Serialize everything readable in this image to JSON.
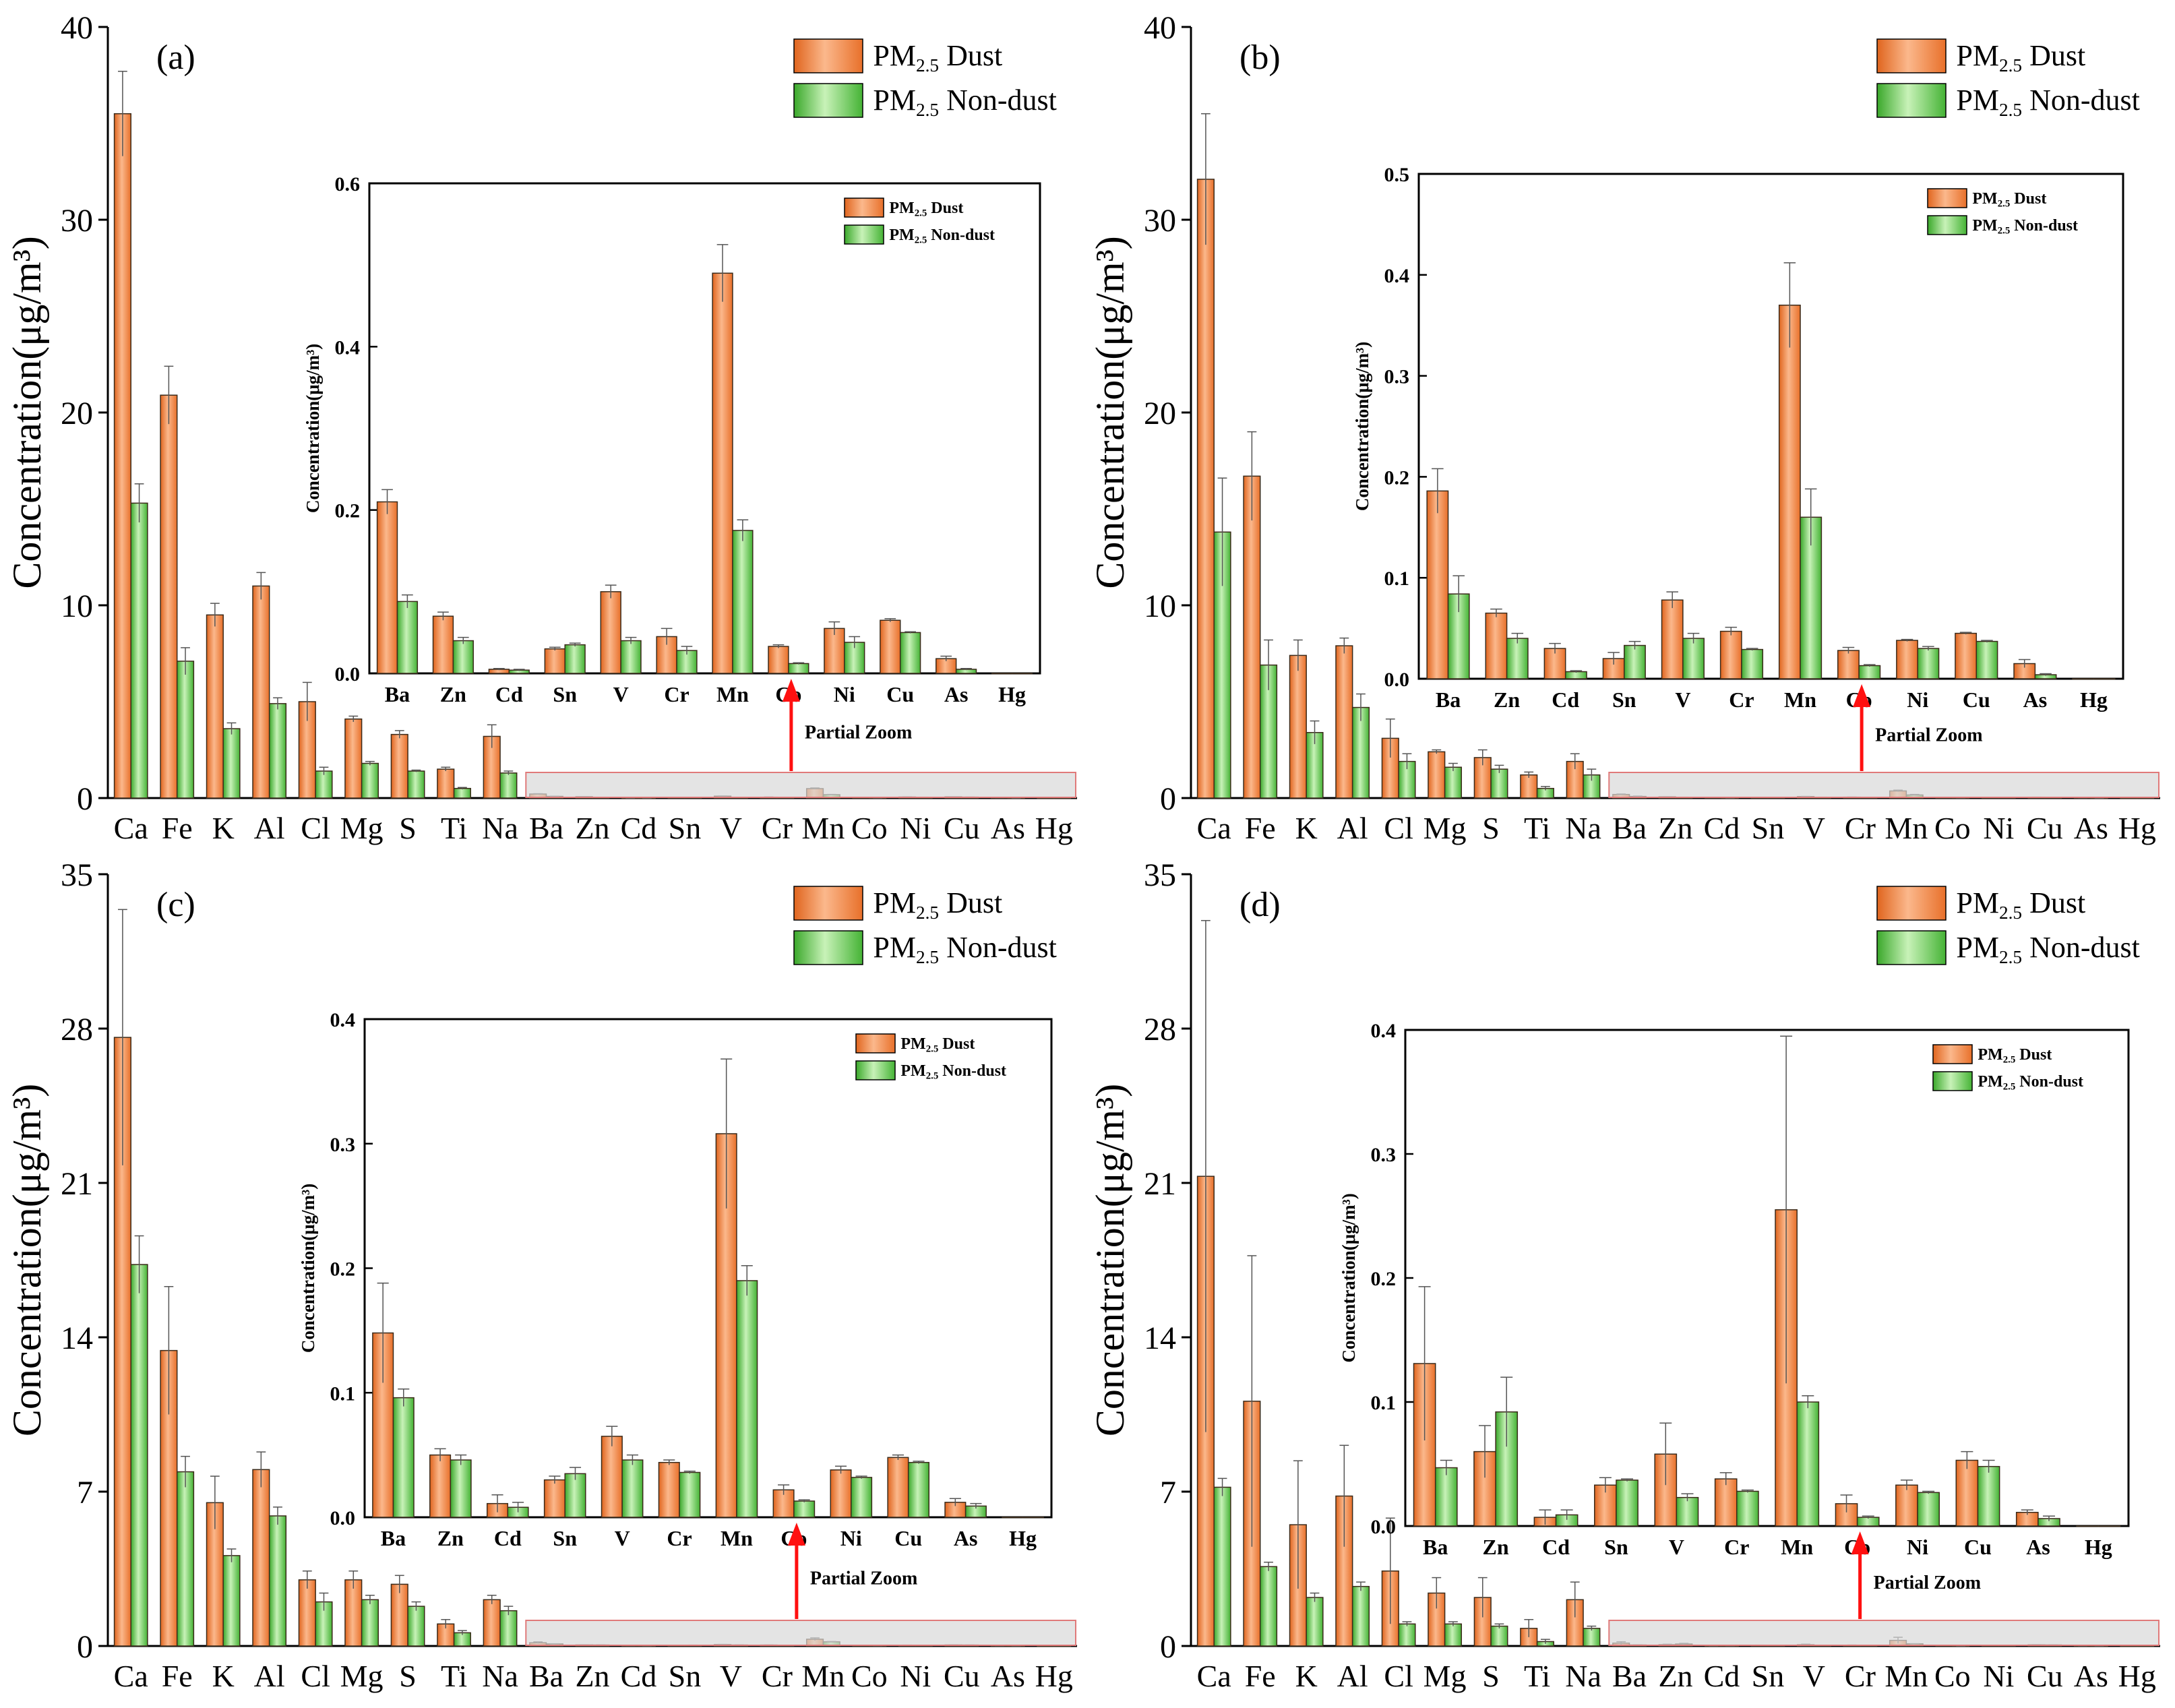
{
  "figure": {
    "partial_zoom_label": "Partial Zoom",
    "legend_base": "PM",
    "legend_sub": "2.5",
    "legend_dust": " Dust",
    "legend_nondust": " Non-dust",
    "colors": {
      "dust": "#f0843c",
      "dust_light": "#fbb88c",
      "nondust": "#5cc348",
      "nondust_light": "#c8f2b8",
      "zoom_box": "#e07a7a",
      "arrow": "#ff1010"
    }
  },
  "chart_data": [
    {
      "type": "bar",
      "panel_label": "(a)",
      "ylabel": "Concentration(μg/m³)",
      "ylim": [
        0,
        40
      ],
      "yticks": [
        "0",
        "10",
        "20",
        "30",
        "40"
      ],
      "categories": [
        "Ca",
        "Fe",
        "K",
        "Al",
        "Cl",
        "Mg",
        "S",
        "Ti",
        "Na",
        "Ba",
        "Zn",
        "Cd",
        "Sn",
        "V",
        "Cr",
        "Mn",
        "Co",
        "Ni",
        "Cu",
        "As",
        "Hg"
      ],
      "series": [
        {
          "name": "PM2.5 Dust",
          "values": [
            35.5,
            20.9,
            9.5,
            11.0,
            5.0,
            4.1,
            3.3,
            1.5,
            3.2,
            0.21,
            0.07,
            0.005,
            0.03,
            0.1,
            0.045,
            0.49,
            0.033,
            0.055,
            0.065,
            0.018,
            0.0
          ],
          "errors": [
            2.2,
            1.5,
            0.6,
            0.7,
            1.0,
            0.15,
            0.2,
            0.1,
            0.6,
            0.015,
            0.005,
            0.001,
            0.002,
            0.008,
            0.01,
            0.035,
            0.002,
            0.008,
            0.002,
            0.003,
            0
          ]
        },
        {
          "name": "PM2.5 Non-dust",
          "values": [
            15.3,
            7.1,
            3.6,
            4.9,
            1.4,
            1.8,
            1.4,
            0.5,
            1.3,
            0.088,
            0.04,
            0.004,
            0.035,
            0.04,
            0.028,
            0.175,
            0.012,
            0.038,
            0.05,
            0.005,
            0.0
          ],
          "errors": [
            1.0,
            0.7,
            0.3,
            0.3,
            0.2,
            0.1,
            0.05,
            0.05,
            0.1,
            0.008,
            0.004,
            0.001,
            0.002,
            0.004,
            0.005,
            0.013,
            0.001,
            0.007,
            0.001,
            0.001,
            0
          ]
        }
      ],
      "inset": {
        "ylabel": "Concentration(μg/m³)",
        "ylim": [
          0,
          0.6
        ],
        "yticks": [
          "0.0",
          "0.2",
          "0.4",
          "0.6"
        ],
        "categories": [
          "Ba",
          "Zn",
          "Cd",
          "Sn",
          "V",
          "Cr",
          "Mn",
          "Co",
          "Ni",
          "Cu",
          "As",
          "Hg"
        ]
      }
    },
    {
      "type": "bar",
      "panel_label": "(b)",
      "ylabel": "Concentration(μg/m³)",
      "ylim": [
        0,
        40
      ],
      "yticks": [
        "0",
        "10",
        "20",
        "30",
        "40"
      ],
      "categories": [
        "Ca",
        "Fe",
        "K",
        "Al",
        "Cl",
        "Mg",
        "S",
        "Ti",
        "Na",
        "Ba",
        "Zn",
        "Cd",
        "Sn",
        "V",
        "Cr",
        "Mn",
        "Co",
        "Ni",
        "Cu",
        "As",
        "Hg"
      ],
      "series": [
        {
          "name": "PM2.5 Dust",
          "values": [
            32.1,
            16.7,
            7.4,
            7.9,
            3.1,
            2.4,
            2.1,
            1.2,
            1.9,
            0.186,
            0.065,
            0.03,
            0.02,
            0.078,
            0.047,
            0.37,
            0.028,
            0.038,
            0.045,
            0.015,
            0.0
          ],
          "errors": [
            3.4,
            2.3,
            0.8,
            0.4,
            1.0,
            0.1,
            0.4,
            0.15,
            0.4,
            0.022,
            0.004,
            0.005,
            0.006,
            0.008,
            0.004,
            0.042,
            0.003,
            0.001,
            0.001,
            0.004,
            0
          ]
        },
        {
          "name": "PM2.5 Non-dust",
          "values": [
            13.8,
            6.9,
            3.4,
            4.7,
            1.9,
            1.6,
            1.5,
            0.5,
            1.2,
            0.084,
            0.04,
            0.007,
            0.033,
            0.04,
            0.029,
            0.16,
            0.013,
            0.03,
            0.037,
            0.004,
            0.0
          ],
          "errors": [
            2.8,
            1.3,
            0.6,
            0.7,
            0.4,
            0.2,
            0.2,
            0.1,
            0.3,
            0.018,
            0.005,
            0.001,
            0.004,
            0.005,
            0.001,
            0.028,
            0.001,
            0.002,
            0.001,
            0.001,
            0
          ]
        }
      ],
      "inset": {
        "ylabel": "Concentration(μg/m³)",
        "ylim": [
          0,
          0.5
        ],
        "yticks": [
          "0.0",
          "0.1",
          "0.2",
          "0.3",
          "0.4",
          "0.5"
        ],
        "categories": [
          "Ba",
          "Zn",
          "Cd",
          "Sn",
          "V",
          "Cr",
          "Mn",
          "Co",
          "Ni",
          "Cu",
          "As",
          "Hg"
        ]
      }
    },
    {
      "type": "bar",
      "panel_label": "(c)",
      "ylabel": "Concentration(μg/m³)",
      "ylim": [
        0,
        35
      ],
      "yticks": [
        "0",
        "7",
        "14",
        "21",
        "28",
        "35"
      ],
      "categories": [
        "Ca",
        "Fe",
        "K",
        "Al",
        "Cl",
        "Mg",
        "S",
        "Ti",
        "Na",
        "Ba",
        "Zn",
        "Cd",
        "Sn",
        "V",
        "Cr",
        "Mn",
        "Co",
        "Ni",
        "Cu",
        "As",
        "Hg"
      ],
      "series": [
        {
          "name": "PM2.5 Dust",
          "values": [
            27.6,
            13.4,
            6.5,
            8.0,
            3.0,
            3.0,
            2.8,
            1.0,
            2.1,
            0.148,
            0.05,
            0.011,
            0.03,
            0.065,
            0.044,
            0.308,
            0.022,
            0.038,
            0.048,
            0.012,
            0.0
          ],
          "errors": [
            5.8,
            2.9,
            1.2,
            0.8,
            0.4,
            0.4,
            0.4,
            0.2,
            0.2,
            0.04,
            0.005,
            0.007,
            0.003,
            0.008,
            0.002,
            0.06,
            0.004,
            0.003,
            0.002,
            0.003,
            0
          ]
        },
        {
          "name": "PM2.5 Non-dust",
          "values": [
            17.3,
            7.9,
            4.1,
            5.9,
            2.0,
            2.1,
            1.8,
            0.6,
            1.6,
            0.096,
            0.046,
            0.008,
            0.035,
            0.046,
            0.036,
            0.19,
            0.013,
            0.032,
            0.044,
            0.009,
            0.0
          ],
          "errors": [
            1.3,
            0.7,
            0.3,
            0.4,
            0.4,
            0.2,
            0.2,
            0.1,
            0.2,
            0.007,
            0.004,
            0.004,
            0.005,
            0.004,
            0.001,
            0.012,
            0.001,
            0.001,
            0.001,
            0.002,
            0
          ]
        }
      ],
      "inset": {
        "ylabel": "Concentration(μg/m³)",
        "ylim": [
          0,
          0.4
        ],
        "yticks": [
          "0.0",
          "0.1",
          "0.2",
          "0.3",
          "0.4"
        ],
        "categories": [
          "Ba",
          "Zn",
          "Cd",
          "Sn",
          "V",
          "Cr",
          "Mn",
          "Co",
          "Ni",
          "Cu",
          "As",
          "Hg"
        ]
      }
    },
    {
      "type": "bar",
      "panel_label": "(d)",
      "ylabel": "Concentration(μg/m³)",
      "ylim": [
        0,
        35
      ],
      "yticks": [
        "0",
        "7",
        "14",
        "21",
        "28",
        "35"
      ],
      "categories": [
        "Ca",
        "Fe",
        "K",
        "Al",
        "Cl",
        "Mg",
        "S",
        "Ti",
        "Na",
        "Ba",
        "Zn",
        "Cd",
        "Sn",
        "V",
        "Cr",
        "Mn",
        "Co",
        "Ni",
        "Cu",
        "As",
        "Hg"
      ],
      "series": [
        {
          "name": "PM2.5 Dust",
          "values": [
            21.3,
            11.1,
            5.5,
            6.8,
            3.4,
            2.4,
            2.2,
            0.8,
            2.1,
            0.131,
            0.06,
            0.007,
            0.033,
            0.058,
            0.038,
            0.255,
            0.018,
            0.033,
            0.053,
            0.011,
            0.0
          ],
          "errors": [
            11.6,
            6.6,
            2.9,
            2.3,
            2.4,
            0.7,
            0.9,
            0.4,
            0.8,
            0.062,
            0.021,
            0.006,
            0.006,
            0.025,
            0.005,
            0.14,
            0.007,
            0.004,
            0.007,
            0.002,
            0
          ]
        },
        {
          "name": "PM2.5 Non-dust",
          "values": [
            7.2,
            3.6,
            2.2,
            2.7,
            1.0,
            1.0,
            0.9,
            0.2,
            0.8,
            0.047,
            0.092,
            0.009,
            0.037,
            0.023,
            0.028,
            0.1,
            0.007,
            0.027,
            0.048,
            0.006,
            0.0
          ],
          "errors": [
            0.4,
            0.2,
            0.2,
            0.2,
            0.1,
            0.1,
            0.1,
            0.1,
            0.1,
            0.006,
            0.028,
            0.004,
            0.001,
            0.003,
            0.001,
            0.005,
            0.001,
            0.001,
            0.005,
            0.002,
            0
          ]
        }
      ],
      "inset": {
        "ylabel": "Concentration(μg/m³)",
        "ylim": [
          0,
          0.4
        ],
        "yticks": [
          "0.0",
          "0.1",
          "0.2",
          "0.3",
          "0.4"
        ],
        "categories": [
          "Ba",
          "Zn",
          "Cd",
          "Sn",
          "V",
          "Cr",
          "Mn",
          "Co",
          "Ni",
          "Cu",
          "As",
          "Hg"
        ]
      }
    }
  ]
}
